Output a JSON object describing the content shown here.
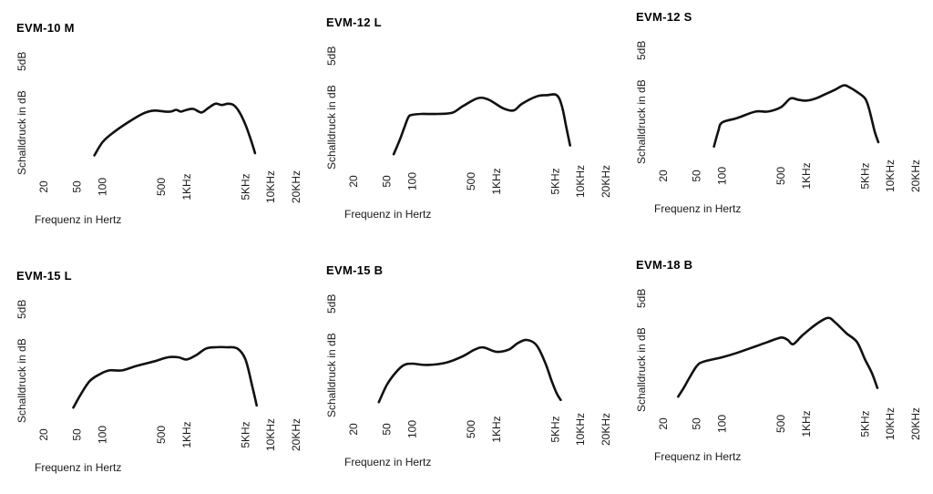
{
  "chart_data": [
    {
      "type": "line",
      "title": "EVM-10 M",
      "xlabel": "Frequenz in Hertz",
      "ylabel": "Schalldruck in dB",
      "scale_label": "5dB",
      "x_scale": "log",
      "xlim": [
        20,
        20000
      ],
      "ylim": [
        0,
        25
      ],
      "x_ticks": [
        20,
        50,
        100,
        500,
        1000,
        5000,
        10000,
        20000
      ],
      "x_tick_labels": [
        "20",
        "50",
        "100",
        "500",
        "1KHz",
        "5KHz",
        "10KHz",
        "20KHz"
      ],
      "series": [
        {
          "x": [
            80,
            100,
            130,
            200,
            300,
            400,
            550,
            650,
            750,
            850,
            1000,
            1200,
            1500,
            1800,
            2200,
            2600,
            3100,
            3600,
            4200,
            5000,
            5800,
            6500
          ],
          "y": [
            2.0,
            5.0,
            7.0,
            9.5,
            11.5,
            12.2,
            12.0,
            12.0,
            12.4,
            12.0,
            12.4,
            12.6,
            11.8,
            12.8,
            13.8,
            13.5,
            13.8,
            13.5,
            12.0,
            9.0,
            5.5,
            2.5
          ]
        }
      ]
    },
    {
      "type": "line",
      "title": "EVM-12 L",
      "xlabel": "Frequenz in Hertz",
      "ylabel": "Schalldruck in dB",
      "scale_label": "5dB",
      "x_scale": "log",
      "xlim": [
        20,
        20000
      ],
      "ylim": [
        0,
        25
      ],
      "x_ticks": [
        20,
        50,
        100,
        500,
        1000,
        5000,
        10000,
        20000
      ],
      "x_tick_labels": [
        "20",
        "50",
        "100",
        "500",
        "1KHz",
        "5KHz",
        "10KHz",
        "20KHz"
      ],
      "series": [
        {
          "x": [
            60,
            70,
            80,
            90,
            100,
            130,
            200,
            300,
            400,
            600,
            800,
            1200,
            1600,
            2000,
            3000,
            4000,
            5200,
            6000,
            6800,
            7500
          ],
          "y": [
            1.0,
            4.0,
            7.0,
            9.5,
            10.0,
            10.2,
            10.2,
            10.5,
            12.0,
            13.8,
            13.5,
            11.5,
            11.0,
            12.5,
            14.2,
            14.5,
            14.5,
            12.0,
            7.0,
            3.0
          ]
        }
      ]
    },
    {
      "type": "line",
      "title": "EVM-12 S",
      "xlabel": "Frequenz in Hertz",
      "ylabel": "Schalldruck in dB",
      "scale_label": "5dB",
      "x_scale": "log",
      "xlim": [
        20,
        20000
      ],
      "ylim": [
        0,
        25
      ],
      "x_ticks": [
        20,
        50,
        100,
        500,
        1000,
        5000,
        10000,
        20000
      ],
      "x_tick_labels": [
        "20",
        "50",
        "100",
        "500",
        "1KHz",
        "5KHz",
        "10KHz",
        "20KHz"
      ],
      "series": [
        {
          "x": [
            80,
            90,
            100,
            150,
            250,
            350,
            500,
            650,
            800,
            1000,
            1300,
            1700,
            2200,
            2800,
            3300,
            4000,
            5000,
            5600,
            6500,
            7200
          ],
          "y": [
            1.5,
            5.0,
            7.0,
            8.0,
            9.5,
            9.5,
            10.5,
            12.5,
            12.2,
            12.0,
            12.5,
            13.5,
            14.5,
            15.5,
            15.0,
            14.0,
            12.5,
            10.0,
            5.0,
            2.5
          ]
        }
      ]
    },
    {
      "type": "line",
      "title": "EVM-15 L",
      "xlabel": "Frequenz in Hertz",
      "ylabel": "Schalldruck in dB",
      "scale_label": "5dB",
      "x_scale": "log",
      "xlim": [
        20,
        20000
      ],
      "ylim": [
        0,
        25
      ],
      "x_ticks": [
        20,
        50,
        100,
        500,
        1000,
        5000,
        10000,
        20000
      ],
      "x_tick_labels": [
        "20",
        "50",
        "100",
        "500",
        "1KHz",
        "5KHz",
        "10KHz",
        "20KHz"
      ],
      "series": [
        {
          "x": [
            45,
            55,
            70,
            90,
            120,
            170,
            250,
            400,
            600,
            800,
            1000,
            1300,
            1700,
            2200,
            3000,
            4000,
            5000,
            6000,
            6800
          ],
          "y": [
            1.0,
            4.0,
            7.0,
            8.5,
            9.5,
            9.5,
            10.5,
            11.5,
            12.5,
            12.5,
            12.0,
            13.0,
            14.5,
            14.8,
            14.8,
            14.5,
            12.0,
            6.0,
            1.5
          ]
        }
      ]
    },
    {
      "type": "line",
      "title": "EVM-15 B",
      "xlabel": "Frequenz in Hertz",
      "ylabel": "Schalldruck in dB",
      "scale_label": "5dB",
      "x_scale": "log",
      "xlim": [
        20,
        20000
      ],
      "ylim": [
        0,
        25
      ],
      "x_ticks": [
        20,
        50,
        100,
        500,
        1000,
        5000,
        10000,
        20000
      ],
      "x_tick_labels": [
        "20",
        "50",
        "100",
        "500",
        "1KHz",
        "5KHz",
        "10KHz",
        "20KHz"
      ],
      "series": [
        {
          "x": [
            40,
            50,
            65,
            80,
            100,
            150,
            250,
            400,
            550,
            700,
            1000,
            1400,
            1800,
            2300,
            3000,
            3800,
            4500,
            5200,
            5800
          ],
          "y": [
            1.0,
            5.0,
            8.0,
            9.5,
            9.8,
            9.5,
            10.0,
            11.5,
            13.0,
            13.5,
            12.5,
            13.0,
            14.5,
            15.2,
            14.0,
            10.0,
            6.0,
            3.0,
            1.5
          ]
        }
      ]
    },
    {
      "type": "line",
      "title": "EVM-18 B",
      "xlabel": "Frequenz in Hertz",
      "ylabel": "Schalldruck in dB",
      "scale_label": "5dB",
      "x_scale": "log",
      "xlim": [
        20,
        20000
      ],
      "ylim": [
        0,
        25
      ],
      "x_ticks": [
        20,
        50,
        100,
        500,
        1000,
        5000,
        10000,
        20000
      ],
      "x_tick_labels": [
        "20",
        "50",
        "100",
        "500",
        "1KHz",
        "5KHz",
        "10KHz",
        "20KHz"
      ],
      "series": [
        {
          "x": [
            30,
            35,
            40,
            50,
            60,
            100,
            150,
            250,
            350,
            500,
            600,
            700,
            900,
            1300,
            1800,
            2200,
            3000,
            4000,
            5000,
            6000,
            7000
          ],
          "y": [
            1.0,
            3.0,
            5.0,
            8.0,
            9.0,
            10.0,
            11.0,
            12.5,
            13.5,
            14.5,
            14.0,
            13.0,
            15.0,
            17.5,
            19.0,
            18.0,
            15.5,
            13.5,
            9.5,
            6.5,
            3.0
          ]
        }
      ]
    }
  ]
}
